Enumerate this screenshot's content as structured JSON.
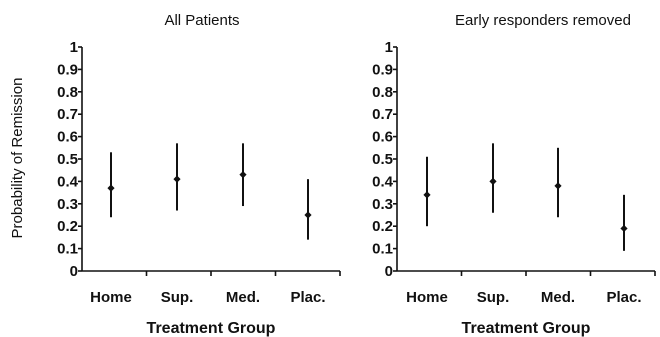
{
  "chart_data": [
    {
      "type": "scatter",
      "title": "All Patients",
      "xlabel": "Treatment Group",
      "ylabel": "Probability of Remission",
      "ylim": [
        0,
        1
      ],
      "yticks": [
        "0",
        "0.1",
        "0.2",
        "0.3",
        "0.4",
        "0.5",
        "0.6",
        "0.7",
        "0.8",
        "0.9",
        "1"
      ],
      "categories": [
        "Home",
        "Sup.",
        "Med.",
        "Plac."
      ],
      "values": [
        0.37,
        0.41,
        0.43,
        0.25
      ],
      "lower": [
        0.24,
        0.27,
        0.29,
        0.14
      ],
      "upper": [
        0.53,
        0.57,
        0.57,
        0.41
      ],
      "grid": false,
      "legend": "none"
    },
    {
      "type": "scatter",
      "title": "Early responders removed",
      "xlabel": "Treatment Group",
      "ylabel": "",
      "ylim": [
        0,
        1
      ],
      "yticks": [
        "0",
        "0.1",
        "0.2",
        "0.3",
        "0.4",
        "0.5",
        "0.6",
        "0.7",
        "0.8",
        "0.9",
        "1"
      ],
      "categories": [
        "Home",
        "Sup.",
        "Med.",
        "Plac."
      ],
      "values": [
        0.34,
        0.4,
        0.38,
        0.19
      ],
      "lower": [
        0.2,
        0.26,
        0.24,
        0.09
      ],
      "upper": [
        0.51,
        0.57,
        0.55,
        0.34
      ],
      "grid": false,
      "legend": "none"
    }
  ]
}
